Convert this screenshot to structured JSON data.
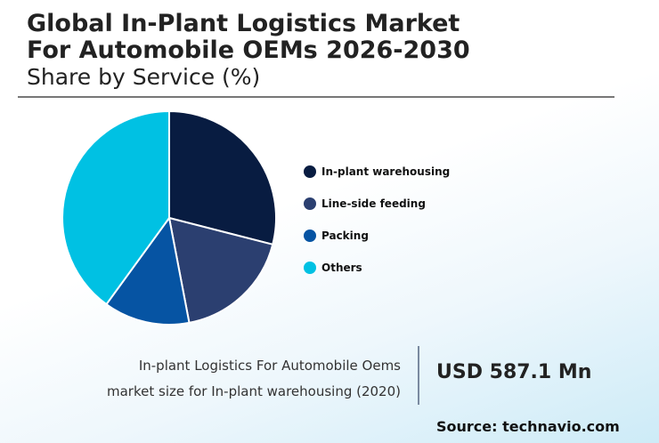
{
  "title_line1": "Global In-Plant Logistics Market",
  "title_line2": "For Automobile OEMs 2026-2030",
  "subtitle": "Share by Service (%)",
  "chart_data": {
    "type": "pie",
    "title": "Global In-Plant Logistics Market For Automobile OEMs 2026-2030",
    "subtitle": "Share by Service (%)",
    "categories": [
      "In-plant warehousing",
      "Line-side feeding",
      "Packing",
      "Others"
    ],
    "values": [
      29,
      18,
      13,
      40
    ],
    "colors": [
      "#081c41",
      "#2b3f70",
      "#0654a3",
      "#00c1e3"
    ],
    "legend_position": "right"
  },
  "caption_line1": "In-plant Logistics For Automobile Oems",
  "caption_line2": "market size for In-plant warehousing (2020)",
  "value": "USD 587.1 Mn",
  "source": "Source: technavio.com"
}
